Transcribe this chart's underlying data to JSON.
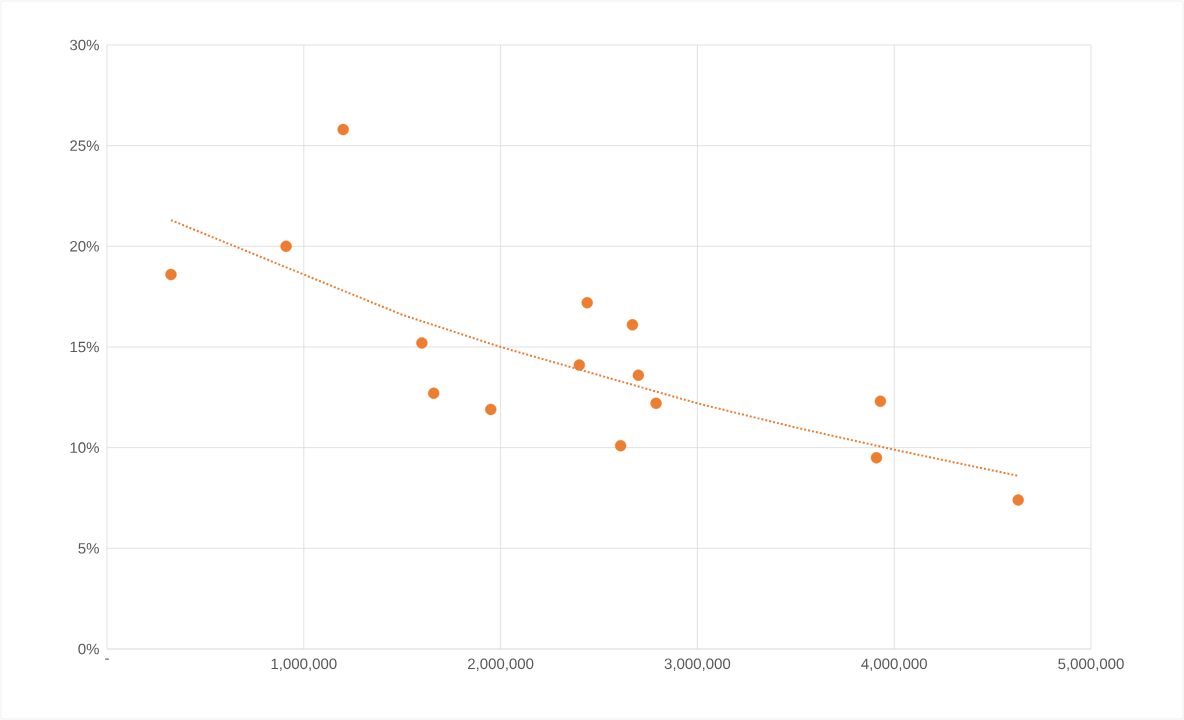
{
  "chart_data": {
    "type": "scatter",
    "xlim": [
      0,
      5000000
    ],
    "ylim": [
      0,
      30
    ],
    "xticks": [
      {
        "value": 0,
        "label": "-"
      },
      {
        "value": 1000000,
        "label": "1,000,000"
      },
      {
        "value": 2000000,
        "label": "2,000,000"
      },
      {
        "value": 3000000,
        "label": "3,000,000"
      },
      {
        "value": 4000000,
        "label": "4,000,000"
      },
      {
        "value": 5000000,
        "label": "5,000,000"
      }
    ],
    "yticks": [
      {
        "value": 0,
        "label": "0%"
      },
      {
        "value": 5,
        "label": "5%"
      },
      {
        "value": 10,
        "label": "10%"
      },
      {
        "value": 15,
        "label": "15%"
      },
      {
        "value": 20,
        "label": "20%"
      },
      {
        "value": 25,
        "label": "25%"
      },
      {
        "value": 30,
        "label": "30%"
      }
    ],
    "grid": true,
    "series": [
      {
        "color": "#ed7d31",
        "marker": "circle",
        "x": [
          325000,
          910000,
          1200000,
          1600000,
          1660000,
          1950000,
          2400000,
          2440000,
          2610000,
          2670000,
          2700000,
          2790000,
          3930000,
          3910000,
          4630000
        ],
        "values": [
          18.6,
          20.0,
          25.8,
          15.2,
          12.7,
          11.9,
          14.1,
          17.2,
          10.1,
          16.1,
          13.6,
          12.2,
          12.3,
          9.5,
          7.4
        ]
      },
      {
        "type": "line",
        "color": "#ed7d31",
        "marker": "none",
        "line_style": "dotted",
        "x": [
          325000,
          1000000,
          1500000,
          2000000,
          2500000,
          3000000,
          3500000,
          4000000,
          4630000
        ],
        "values": [
          21.3,
          18.6,
          16.6,
          15.0,
          13.6,
          12.2,
          11.0,
          9.9,
          8.6
        ]
      }
    ]
  }
}
